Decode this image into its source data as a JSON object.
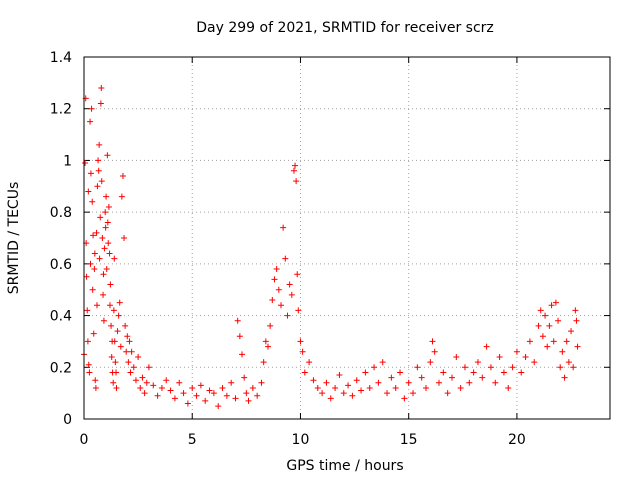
{
  "chart_data": {
    "type": "scatter",
    "title": "Day 299 of 2021, SRMTID for receiver scrz",
    "xlabel": "GPS time / hours",
    "ylabel": "SRMTID / TECUs",
    "xlim": [
      0,
      24.3
    ],
    "ylim": [
      0,
      1.4
    ],
    "xticks": [
      0,
      5,
      10,
      15,
      20
    ],
    "xtick_labels": [
      "0",
      "5",
      "10",
      "15",
      "20"
    ],
    "yticks": [
      0,
      0.2,
      0.4,
      0.6,
      0.8,
      1,
      1.2,
      1.4
    ],
    "ytick_labels": [
      "0",
      "0.2",
      "0.4",
      "0.6",
      "0.8",
      "1",
      "1.2",
      "1.4"
    ],
    "grid": true,
    "marker": "+",
    "color": "#ff0000",
    "series": [
      {
        "name": "SRMTID",
        "points": [
          [
            0.0,
            0.25
          ],
          [
            0.05,
            0.99
          ],
          [
            0.08,
            1.24
          ],
          [
            0.1,
            0.68
          ],
          [
            0.12,
            0.55
          ],
          [
            0.15,
            0.42
          ],
          [
            0.18,
            0.3
          ],
          [
            0.2,
            0.88
          ],
          [
            0.22,
            0.21
          ],
          [
            0.25,
            0.18
          ],
          [
            0.28,
            1.15
          ],
          [
            0.3,
            0.6
          ],
          [
            0.32,
            0.95
          ],
          [
            0.35,
            1.2
          ],
          [
            0.38,
            0.84
          ],
          [
            0.4,
            0.5
          ],
          [
            0.42,
            0.71
          ],
          [
            0.45,
            0.33
          ],
          [
            0.48,
            0.58
          ],
          [
            0.5,
            0.64
          ],
          [
            0.52,
            0.15
          ],
          [
            0.55,
            0.12
          ],
          [
            0.58,
            0.72
          ],
          [
            0.6,
            0.44
          ],
          [
            0.62,
            0.9
          ],
          [
            0.65,
            1.0
          ],
          [
            0.68,
            0.96
          ],
          [
            0.7,
            1.06
          ],
          [
            0.72,
            0.62
          ],
          [
            0.75,
            0.78
          ],
          [
            0.78,
            1.22
          ],
          [
            0.8,
            1.28
          ],
          [
            0.82,
            0.92
          ],
          [
            0.85,
            0.7
          ],
          [
            0.88,
            0.48
          ],
          [
            0.9,
            0.56
          ],
          [
            0.92,
            0.38
          ],
          [
            0.95,
            0.66
          ],
          [
            0.98,
            0.8
          ],
          [
            1.0,
            0.74
          ],
          [
            1.02,
            0.86
          ],
          [
            1.05,
            0.58
          ],
          [
            1.08,
            1.02
          ],
          [
            1.1,
            0.76
          ],
          [
            1.12,
            0.68
          ],
          [
            1.15,
            0.82
          ],
          [
            1.18,
            0.64
          ],
          [
            1.2,
            0.44
          ],
          [
            1.22,
            0.52
          ],
          [
            1.25,
            0.36
          ],
          [
            1.28,
            0.24
          ],
          [
            1.3,
            0.3
          ],
          [
            1.32,
            0.18
          ],
          [
            1.35,
            0.14
          ],
          [
            1.38,
            0.42
          ],
          [
            1.4,
            0.62
          ],
          [
            1.42,
            0.3
          ],
          [
            1.45,
            0.22
          ],
          [
            1.48,
            0.18
          ],
          [
            1.5,
            0.12
          ],
          [
            1.55,
            0.34
          ],
          [
            1.6,
            0.4
          ],
          [
            1.65,
            0.45
          ],
          [
            1.7,
            0.28
          ],
          [
            1.75,
            0.86
          ],
          [
            1.8,
            0.94
          ],
          [
            1.85,
            0.7
          ],
          [
            1.9,
            0.36
          ],
          [
            1.95,
            0.26
          ],
          [
            2.0,
            0.32
          ],
          [
            2.05,
            0.22
          ],
          [
            2.1,
            0.3
          ],
          [
            2.15,
            0.18
          ],
          [
            2.2,
            0.26
          ],
          [
            2.3,
            0.2
          ],
          [
            2.4,
            0.15
          ],
          [
            2.5,
            0.24
          ],
          [
            2.6,
            0.12
          ],
          [
            2.7,
            0.16
          ],
          [
            2.8,
            0.1
          ],
          [
            2.9,
            0.14
          ],
          [
            3.0,
            0.2
          ],
          [
            3.2,
            0.13
          ],
          [
            3.4,
            0.09
          ],
          [
            3.6,
            0.12
          ],
          [
            3.8,
            0.15
          ],
          [
            4.0,
            0.11
          ],
          [
            4.2,
            0.08
          ],
          [
            4.4,
            0.14
          ],
          [
            4.6,
            0.1
          ],
          [
            4.8,
            0.06
          ],
          [
            5.0,
            0.12
          ],
          [
            5.2,
            0.09
          ],
          [
            5.4,
            0.13
          ],
          [
            5.6,
            0.07
          ],
          [
            5.8,
            0.11
          ],
          [
            6.0,
            0.1
          ],
          [
            6.2,
            0.05
          ],
          [
            6.4,
            0.12
          ],
          [
            6.6,
            0.09
          ],
          [
            6.8,
            0.14
          ],
          [
            7.0,
            0.08
          ],
          [
            7.1,
            0.38
          ],
          [
            7.2,
            0.32
          ],
          [
            7.3,
            0.25
          ],
          [
            7.4,
            0.16
          ],
          [
            7.5,
            0.1
          ],
          [
            7.6,
            0.07
          ],
          [
            7.8,
            0.12
          ],
          [
            8.0,
            0.09
          ],
          [
            8.2,
            0.14
          ],
          [
            8.3,
            0.22
          ],
          [
            8.4,
            0.3
          ],
          [
            8.5,
            0.28
          ],
          [
            8.6,
            0.36
          ],
          [
            8.7,
            0.46
          ],
          [
            8.8,
            0.54
          ],
          [
            8.9,
            0.58
          ],
          [
            9.0,
            0.5
          ],
          [
            9.1,
            0.44
          ],
          [
            9.2,
            0.74
          ],
          [
            9.3,
            0.62
          ],
          [
            9.4,
            0.4
          ],
          [
            9.5,
            0.52
          ],
          [
            9.6,
            0.48
          ],
          [
            9.7,
            0.96
          ],
          [
            9.75,
            0.98
          ],
          [
            9.8,
            0.92
          ],
          [
            9.85,
            0.56
          ],
          [
            9.9,
            0.42
          ],
          [
            10.0,
            0.3
          ],
          [
            10.1,
            0.26
          ],
          [
            10.2,
            0.18
          ],
          [
            10.4,
            0.22
          ],
          [
            10.6,
            0.15
          ],
          [
            10.8,
            0.12
          ],
          [
            11.0,
            0.1
          ],
          [
            11.2,
            0.14
          ],
          [
            11.4,
            0.08
          ],
          [
            11.6,
            0.12
          ],
          [
            11.8,
            0.17
          ],
          [
            12.0,
            0.1
          ],
          [
            12.2,
            0.13
          ],
          [
            12.4,
            0.09
          ],
          [
            12.6,
            0.15
          ],
          [
            12.8,
            0.11
          ],
          [
            13.0,
            0.18
          ],
          [
            13.2,
            0.12
          ],
          [
            13.4,
            0.2
          ],
          [
            13.6,
            0.14
          ],
          [
            13.8,
            0.22
          ],
          [
            14.0,
            0.1
          ],
          [
            14.2,
            0.16
          ],
          [
            14.4,
            0.12
          ],
          [
            14.6,
            0.18
          ],
          [
            14.8,
            0.08
          ],
          [
            15.0,
            0.14
          ],
          [
            15.2,
            0.1
          ],
          [
            15.4,
            0.2
          ],
          [
            15.6,
            0.16
          ],
          [
            15.8,
            0.12
          ],
          [
            16.0,
            0.22
          ],
          [
            16.1,
            0.3
          ],
          [
            16.2,
            0.26
          ],
          [
            16.4,
            0.14
          ],
          [
            16.6,
            0.18
          ],
          [
            16.8,
            0.1
          ],
          [
            17.0,
            0.16
          ],
          [
            17.2,
            0.24
          ],
          [
            17.4,
            0.12
          ],
          [
            17.6,
            0.2
          ],
          [
            17.8,
            0.14
          ],
          [
            18.0,
            0.18
          ],
          [
            18.2,
            0.22
          ],
          [
            18.4,
            0.16
          ],
          [
            18.6,
            0.28
          ],
          [
            18.8,
            0.2
          ],
          [
            19.0,
            0.14
          ],
          [
            19.2,
            0.24
          ],
          [
            19.4,
            0.18
          ],
          [
            19.6,
            0.12
          ],
          [
            19.8,
            0.2
          ],
          [
            20.0,
            0.26
          ],
          [
            20.2,
            0.18
          ],
          [
            20.4,
            0.24
          ],
          [
            20.6,
            0.3
          ],
          [
            20.8,
            0.22
          ],
          [
            21.0,
            0.36
          ],
          [
            21.1,
            0.42
          ],
          [
            21.2,
            0.32
          ],
          [
            21.3,
            0.4
          ],
          [
            21.4,
            0.28
          ],
          [
            21.5,
            0.36
          ],
          [
            21.6,
            0.44
          ],
          [
            21.7,
            0.3
          ],
          [
            21.8,
            0.45
          ],
          [
            21.9,
            0.38
          ],
          [
            22.0,
            0.2
          ],
          [
            22.1,
            0.26
          ],
          [
            22.2,
            0.16
          ],
          [
            22.3,
            0.3
          ],
          [
            22.4,
            0.22
          ],
          [
            22.5,
            0.34
          ],
          [
            22.6,
            0.2
          ],
          [
            22.7,
            0.42
          ],
          [
            22.75,
            0.38
          ],
          [
            22.8,
            0.28
          ]
        ]
      }
    ]
  }
}
